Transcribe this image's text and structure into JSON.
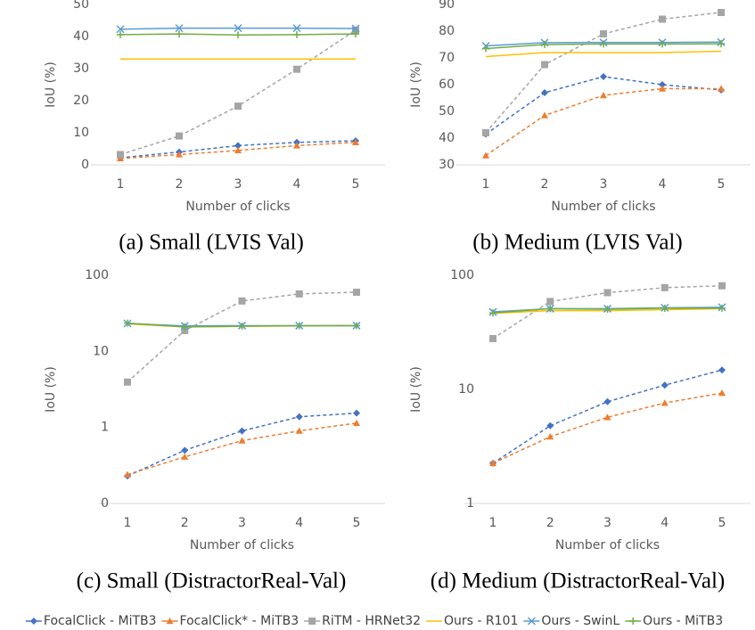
{
  "chart_data": [
    {
      "type": "line",
      "caption": "(a) Small (LVIS Val)",
      "y_label": "IoU (%)",
      "x_label": "Number of clicks",
      "categories": [
        "1",
        "2",
        "3",
        "4",
        "5"
      ],
      "ylim": [
        0,
        50
      ],
      "yticks": [
        0,
        10,
        20,
        30,
        40,
        50
      ],
      "log_y": false,
      "grid": false,
      "series": [
        {
          "name": "FocalClick - MiTB3",
          "color": "#4472c4",
          "marker": "diamond",
          "dashed": true,
          "values": [
            2.2,
            4,
            6,
            7,
            7.5
          ]
        },
        {
          "name": "FocalClick* - MiTB3",
          "color": "#ed7d31",
          "marker": "triangle",
          "dashed": true,
          "values": [
            2,
            3.2,
            4.5,
            6,
            7
          ]
        },
        {
          "name": "RiTM - HRNet32",
          "color": "#a5a5a5",
          "marker": "square",
          "dashed": true,
          "values": [
            3.2,
            9,
            18.3,
            29.8,
            42
          ]
        },
        {
          "name": "Ours - R101",
          "color": "#ffc000",
          "marker": "none",
          "dashed": false,
          "values": [
            33,
            33,
            33,
            33,
            33
          ]
        },
        {
          "name": "Ours - SwinL",
          "color": "#5b9bd5",
          "marker": "x",
          "dashed": false,
          "values": [
            42.3,
            42.6,
            42.6,
            42.6,
            42.5
          ]
        },
        {
          "name": "Ours - MiTB3",
          "color": "#70ad47",
          "marker": "plus",
          "dashed": false,
          "values": [
            40.6,
            40.8,
            40.5,
            40.6,
            40.8
          ]
        }
      ],
      "legend": true
    },
    {
      "type": "line",
      "caption": "(b) Medium (LVIS Val)",
      "y_label": "IoU (%)",
      "x_label": "Number of clicks",
      "categories": [
        "1",
        "2",
        "3",
        "4",
        "5"
      ],
      "ylim": [
        30,
        90
      ],
      "yticks": [
        30,
        40,
        50,
        60,
        70,
        80,
        90
      ],
      "log_y": false,
      "grid": false,
      "series": [
        {
          "color": "#4472c4",
          "marker": "diamond",
          "dashed": true,
          "values": [
            41.5,
            57,
            63,
            60,
            58
          ]
        },
        {
          "color": "#ed7d31",
          "marker": "triangle",
          "dashed": true,
          "values": [
            33.5,
            48.5,
            56,
            58.5,
            58.5
          ]
        },
        {
          "color": "#a5a5a5",
          "marker": "square",
          "dashed": true,
          "values": [
            42,
            67.5,
            79,
            84.5,
            87
          ]
        },
        {
          "color": "#ffc000",
          "marker": "none",
          "dashed": false,
          "values": [
            70.5,
            72,
            72,
            72,
            72.5
          ]
        },
        {
          "color": "#5b9bd5",
          "marker": "x",
          "dashed": false,
          "values": [
            74.5,
            75.7,
            75.8,
            75.8,
            75.9
          ]
        },
        {
          "color": "#70ad47",
          "marker": "plus",
          "dashed": false,
          "values": [
            73.5,
            75,
            75.2,
            75.2,
            75.3
          ]
        }
      ]
    },
    {
      "type": "line",
      "caption": "(c) Small (DistractorReal-Val)",
      "y_label": "IoU (%)",
      "x_label": "Number of clicks",
      "categories": [
        "1",
        "2",
        "3",
        "4",
        "5"
      ],
      "ylim": [
        0.1,
        100
      ],
      "yticks": [
        {
          "value": 0.1,
          "label": "0"
        },
        1,
        10,
        100
      ],
      "log_y": true,
      "grid": false,
      "series": [
        {
          "color": "#4472c4",
          "marker": "diamond",
          "dashed": true,
          "values": [
            0.23,
            0.5,
            0.9,
            1.38,
            1.54
          ]
        },
        {
          "color": "#ed7d31",
          "marker": "triangle",
          "dashed": true,
          "values": [
            0.24,
            0.41,
            0.67,
            0.9,
            1.14
          ]
        },
        {
          "color": "#a5a5a5",
          "marker": "square",
          "dashed": true,
          "values": [
            3.95,
            18.8,
            46,
            57,
            60
          ]
        },
        {
          "color": "#ffc000",
          "marker": "none",
          "dashed": false,
          "values": [
            23,
            21,
            21.3,
            21.6,
            21.8
          ]
        },
        {
          "color": "#5b9bd5",
          "marker": "x",
          "dashed": false,
          "values": [
            23.3,
            21.6,
            21.8,
            21.8,
            21.8
          ]
        },
        {
          "color": "#70ad47",
          "marker": "plus",
          "dashed": false,
          "values": [
            23.5,
            21,
            21.5,
            21.8,
            21.8
          ]
        }
      ]
    },
    {
      "type": "line",
      "caption": "(d) Medium (DistractorReal-Val)",
      "y_label": "IoU (%)",
      "x_label": "Number of clicks",
      "categories": [
        "1",
        "2",
        "3",
        "4",
        "5"
      ],
      "ylim": [
        1,
        100
      ],
      "yticks": [
        1,
        10,
        100
      ],
      "log_y": true,
      "grid": false,
      "series": [
        {
          "color": "#4472c4",
          "marker": "diamond",
          "dashed": true,
          "values": [
            2.25,
            4.8,
            7.8,
            10.9,
            14.8
          ]
        },
        {
          "color": "#ed7d31",
          "marker": "triangle",
          "dashed": true,
          "values": [
            2.25,
            3.85,
            5.7,
            7.6,
            9.3
          ]
        },
        {
          "color": "#a5a5a5",
          "marker": "square",
          "dashed": true,
          "values": [
            27.9,
            59,
            70.5,
            78,
            81
          ]
        },
        {
          "color": "#ffc000",
          "marker": "none",
          "dashed": false,
          "values": [
            46.5,
            49,
            49,
            50,
            51
          ]
        },
        {
          "color": "#5b9bd5",
          "marker": "x",
          "dashed": false,
          "values": [
            47.8,
            51,
            51,
            52,
            52.5
          ]
        },
        {
          "color": "#70ad47",
          "marker": "plus",
          "dashed": false,
          "values": [
            46.9,
            51,
            50.5,
            51.5,
            51.5
          ]
        }
      ]
    }
  ]
}
